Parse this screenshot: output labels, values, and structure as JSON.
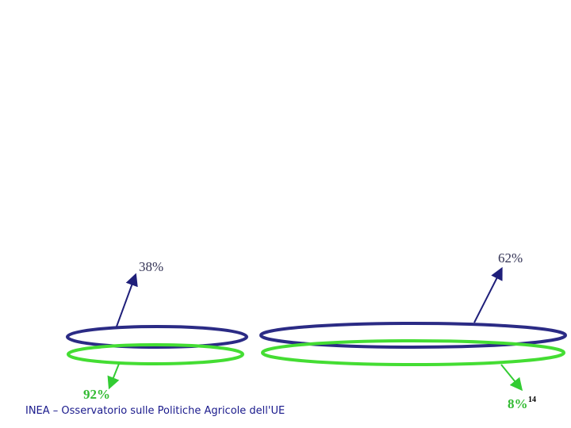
{
  "groups": [
    {
      "top_label": "38%",
      "bottom_label": "92%"
    },
    {
      "top_label": "62%",
      "bottom_label": "8%"
    }
  ],
  "footer": "INEA – Osservatorio sulle Politiche Agricole dell'UE",
  "page_number": "14"
}
